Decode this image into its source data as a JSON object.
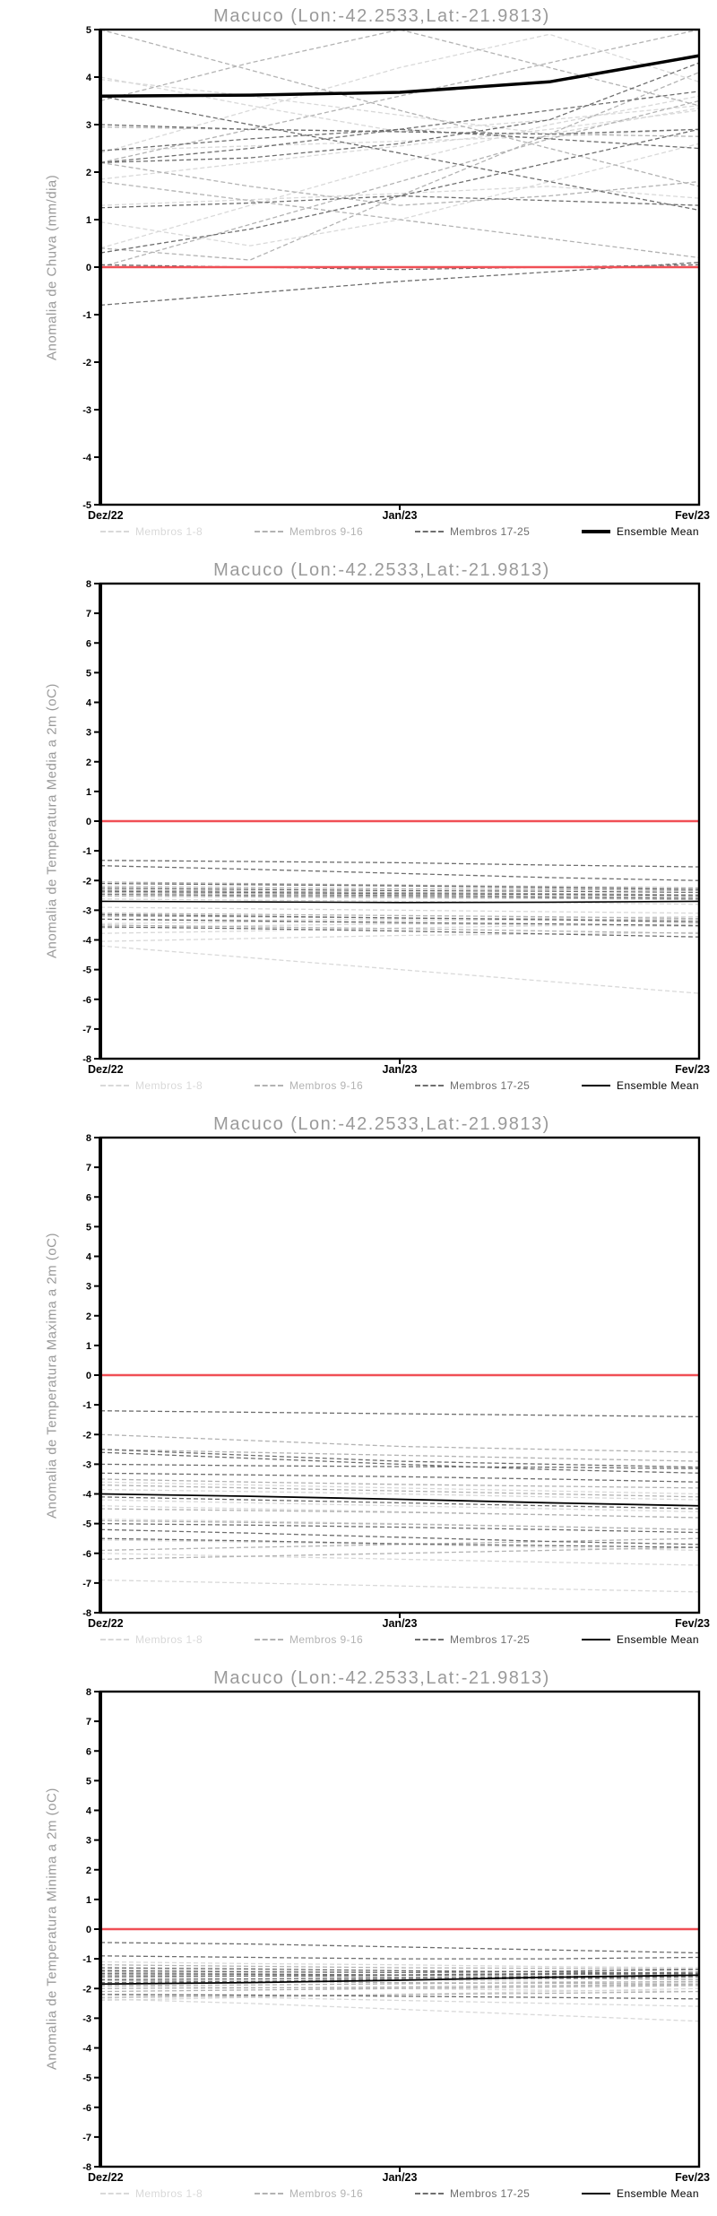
{
  "station": "Macuco",
  "coords_label": "(Lon:-42.2533,Lat:-21.9813)",
  "colors": {
    "title_gray": "#9a9a9a",
    "zero_line_red": "#f04f55",
    "member_light": "#d9d9d9",
    "member_medium": "#b3b3b3",
    "member_dark": "#6e6e6e",
    "ensemble_black": "#000000"
  },
  "chart_data": [
    {
      "type": "line",
      "title": "Macuco (Lon:-42.2533,Lat:-21.9813)",
      "ylabel": "Anomalia de Chuva (mm/dia)",
      "xlabel": "",
      "xticklabels": [
        "Dez/22",
        "Jan/23",
        "Fev/23"
      ],
      "ylim": [
        -5,
        5
      ],
      "ytick_step": 1,
      "grid": false,
      "legend_position": "bottom",
      "zero_line": {
        "y": 0,
        "color": "#f04f55"
      },
      "x": [
        0,
        0.25,
        0.5,
        0.75,
        1
      ],
      "mean": {
        "name": "Ensemble Mean",
        "color": "#000000",
        "width": 3.5,
        "values": [
          3.6,
          3.62,
          3.68,
          3.9,
          4.45
        ]
      },
      "groups": [
        {
          "name": "Membros 1-8",
          "color": "#d9d9d9",
          "series": [
            [
              4.0,
              3.4,
              2.85,
              3.1,
              3.4
            ],
            [
              1.85,
              2.2,
              2.55,
              2.9,
              3.3
            ],
            [
              0.4,
              1.3,
              2.2,
              3.0,
              3.6
            ],
            [
              2.45,
              2.55,
              2.65,
              2.75,
              2.9
            ],
            [
              0.95,
              0.45,
              1.0,
              1.8,
              2.6
            ],
            [
              2.4,
              3.3,
              4.2,
              4.9,
              3.9
            ],
            [
              1.3,
              1.42,
              1.55,
              1.7,
              1.45
            ],
            [
              3.95,
              3.6,
              3.2,
              2.8,
              3.35
            ]
          ]
        },
        {
          "name": "Membros 9-16",
          "color": "#b3b3b3",
          "series": [
            [
              2.2,
              2.9,
              3.6,
              4.3,
              5.0
            ],
            [
              5.0,
              4.15,
              3.3,
              2.5,
              1.7
            ],
            [
              0.4,
              0.15,
              1.5,
              2.8,
              4.1
            ],
            [
              2.95,
              2.9,
              2.85,
              2.8,
              2.75
            ],
            [
              1.8,
              1.4,
              1.0,
              0.6,
              0.2
            ],
            [
              3.5,
              4.3,
              5.0,
              4.2,
              3.4
            ],
            [
              0.0,
              0.9,
              1.8,
              2.7,
              3.5
            ],
            [
              2.2,
              1.7,
              1.3,
              1.5,
              1.8
            ]
          ]
        },
        {
          "name": "Membros 17-25",
          "color": "#6e6e6e",
          "series": [
            [
              3.6,
              3.0,
              2.4,
              1.8,
              1.2
            ],
            [
              2.2,
              2.5,
              2.9,
              3.3,
              3.7
            ],
            [
              -0.8,
              -0.55,
              -0.3,
              -0.1,
              0.1
            ],
            [
              0.05,
              0.0,
              -0.05,
              0.0,
              0.05
            ],
            [
              2.45,
              2.7,
              2.9,
              2.7,
              2.5
            ],
            [
              3.0,
              2.9,
              2.85,
              2.8,
              2.9
            ],
            [
              0.3,
              0.8,
              1.5,
              2.2,
              2.9
            ],
            [
              1.25,
              1.35,
              1.5,
              1.4,
              1.3
            ],
            [
              2.2,
              2.3,
              2.6,
              3.1,
              4.3
            ]
          ]
        }
      ]
    },
    {
      "type": "line",
      "title": "Macuco (Lon:-42.2533,Lat:-21.9813)",
      "ylabel": "Anomalia de Temperatura Media a 2m (oC)",
      "xlabel": "",
      "xticklabels": [
        "Dez/22",
        "Jan/23",
        "Fev/23"
      ],
      "ylim": [
        -8,
        8
      ],
      "ytick_step": 1,
      "grid": false,
      "legend_position": "bottom",
      "zero_line": {
        "y": 0,
        "color": "#f04f55"
      },
      "x": [
        0,
        0.25,
        0.5,
        0.75,
        1
      ],
      "mean": {
        "name": "Ensemble Mean",
        "color": "#000000",
        "width": 1.6,
        "values": [
          -2.7,
          -2.72,
          -2.74,
          -2.73,
          -2.7
        ]
      },
      "groups": [
        {
          "name": "Membros 1-8",
          "color": "#d9d9d9",
          "series": [
            [
              -2.9,
              -2.95,
              -3.0,
              -3.05,
              -3.1
            ],
            [
              -3.3,
              -3.33,
              -3.3,
              -3.26,
              -3.22
            ],
            [
              -3.6,
              -3.52,
              -3.46,
              -3.5,
              -3.55
            ],
            [
              -3.78,
              -3.7,
              -3.6,
              -3.52,
              -3.46
            ],
            [
              -4.2,
              -4.6,
              -5.0,
              -5.4,
              -5.8
            ],
            [
              -2.62,
              -2.66,
              -2.7,
              -2.74,
              -2.8
            ],
            [
              -3.45,
              -3.4,
              -3.36,
              -3.32,
              -3.3
            ],
            [
              -4.05,
              -3.95,
              -3.85,
              -3.8,
              -3.75
            ]
          ]
        },
        {
          "name": "Membros 9-16",
          "color": "#b3b3b3",
          "series": [
            [
              -2.05,
              -2.1,
              -2.15,
              -2.2,
              -2.25
            ],
            [
              -2.2,
              -2.24,
              -2.28,
              -2.3,
              -2.34
            ],
            [
              -2.32,
              -2.36,
              -2.4,
              -2.44,
              -2.48
            ],
            [
              -2.4,
              -2.44,
              -2.48,
              -2.5,
              -2.54
            ],
            [
              -2.52,
              -2.55,
              -2.58,
              -2.6,
              -2.64
            ],
            [
              -3.1,
              -3.14,
              -3.18,
              -3.22,
              -3.28
            ],
            [
              -3.2,
              -3.22,
              -3.26,
              -3.3,
              -3.35
            ],
            [
              -3.5,
              -3.56,
              -3.62,
              -3.7,
              -3.78
            ]
          ]
        },
        {
          "name": "Membros 17-25",
          "color": "#6e6e6e",
          "series": [
            [
              -1.32,
              -1.36,
              -1.4,
              -1.48,
              -1.54
            ],
            [
              -1.5,
              -1.62,
              -1.76,
              -1.9,
              -2.0
            ],
            [
              -2.1,
              -2.14,
              -2.18,
              -2.24,
              -2.3
            ],
            [
              -2.26,
              -2.3,
              -2.34,
              -2.36,
              -2.4
            ],
            [
              -2.36,
              -2.4,
              -2.44,
              -2.46,
              -2.5
            ],
            [
              -2.46,
              -2.5,
              -2.52,
              -2.56,
              -2.6
            ],
            [
              -3.15,
              -3.2,
              -3.26,
              -3.32,
              -3.4
            ],
            [
              -3.3,
              -3.36,
              -3.42,
              -3.46,
              -3.52
            ],
            [
              -3.56,
              -3.62,
              -3.7,
              -3.8,
              -3.9
            ]
          ]
        }
      ]
    },
    {
      "type": "line",
      "title": "Macuco (Lon:-42.2533,Lat:-21.9813)",
      "ylabel": "Anomalia de Temperatura Maxima a 2m (oC)",
      "xlabel": "",
      "xticklabels": [
        "Dez/22",
        "Jan/23",
        "Fev/23"
      ],
      "ylim": [
        -8,
        8
      ],
      "ytick_step": 1,
      "grid": false,
      "legend_position": "bottom",
      "zero_line": {
        "y": 0,
        "color": "#f04f55"
      },
      "x": [
        0,
        0.25,
        0.5,
        0.75,
        1
      ],
      "mean": {
        "name": "Ensemble Mean",
        "color": "#000000",
        "width": 1.8,
        "values": [
          -4.0,
          -4.08,
          -4.18,
          -4.3,
          -4.4
        ]
      },
      "groups": [
        {
          "name": "Membros 1-8",
          "color": "#d9d9d9",
          "series": [
            [
              -3.6,
              -3.7,
              -3.8,
              -3.9,
              -4.0
            ],
            [
              -4.4,
              -4.5,
              -4.6,
              -4.7,
              -4.8
            ],
            [
              -4.85,
              -4.92,
              -5.0,
              -5.1,
              -5.2
            ],
            [
              -5.55,
              -5.62,
              -5.7,
              -5.8,
              -5.9
            ],
            [
              -6.0,
              -6.1,
              -6.2,
              -6.3,
              -6.4
            ],
            [
              -6.9,
              -7.0,
              -7.1,
              -7.2,
              -7.3
            ],
            [
              -4.2,
              -4.3,
              -4.4,
              -4.5,
              -4.6
            ],
            [
              -3.85,
              -3.92,
              -4.0,
              -4.1,
              -4.2
            ]
          ]
        },
        {
          "name": "Membros 9-16",
          "color": "#b3b3b3",
          "series": [
            [
              -2.0,
              -2.2,
              -2.4,
              -2.5,
              -2.6
            ],
            [
              -2.5,
              -2.6,
              -2.7,
              -2.8,
              -2.9
            ],
            [
              -3.5,
              -3.6,
              -3.68,
              -3.74,
              -3.8
            ],
            [
              -3.7,
              -3.8,
              -3.9,
              -4.0,
              -4.1
            ],
            [
              -4.5,
              -4.56,
              -4.62,
              -4.7,
              -4.8
            ],
            [
              -4.9,
              -4.96,
              -5.02,
              -5.1,
              -5.2
            ],
            [
              -5.9,
              -5.8,
              -5.7,
              -5.6,
              -5.5
            ],
            [
              -6.2,
              -6.1,
              -6.0,
              -5.9,
              -5.8
            ]
          ]
        },
        {
          "name": "Membros 17-25",
          "color": "#6e6e6e",
          "series": [
            [
              -1.2,
              -1.25,
              -1.3,
              -1.35,
              -1.4
            ],
            [
              -2.5,
              -2.7,
              -2.9,
              -3.0,
              -3.1
            ],
            [
              -3.0,
              -3.05,
              -3.08,
              -3.1,
              -3.15
            ],
            [
              -3.3,
              -3.36,
              -3.42,
              -3.5,
              -3.6
            ],
            [
              -4.1,
              -4.2,
              -4.3,
              -4.4,
              -4.5
            ],
            [
              -5.0,
              -5.05,
              -5.12,
              -5.2,
              -5.3
            ],
            [
              -5.2,
              -5.32,
              -5.46,
              -5.6,
              -5.7
            ],
            [
              -5.5,
              -5.58,
              -5.68,
              -5.74,
              -5.8
            ],
            [
              -2.6,
              -2.8,
              -3.0,
              -3.18,
              -3.3
            ]
          ]
        }
      ]
    },
    {
      "type": "line",
      "title": "Macuco (Lon:-42.2533,Lat:-21.9813)",
      "ylabel": "Anomalia de Temperatura Minima a 2m (oC)",
      "xlabel": "",
      "xticklabels": [
        "Dez/22",
        "Jan/23",
        "Fev/23"
      ],
      "ylim": [
        -8,
        8
      ],
      "ytick_step": 1,
      "grid": false,
      "legend_position": "bottom",
      "zero_line": {
        "y": 0,
        "color": "#f04f55"
      },
      "x": [
        0,
        0.25,
        0.5,
        0.75,
        1
      ],
      "mean": {
        "name": "Ensemble Mean",
        "color": "#000000",
        "width": 1.8,
        "values": [
          -1.85,
          -1.8,
          -1.72,
          -1.62,
          -1.55
        ]
      },
      "groups": [
        {
          "name": "Membros 1-8",
          "color": "#d9d9d9",
          "series": [
            [
              -2.4,
              -2.3,
              -2.2,
              -2.1,
              -2.0
            ],
            [
              -2.35,
              -2.5,
              -2.7,
              -2.9,
              -3.1
            ],
            [
              -2.2,
              -2.3,
              -2.4,
              -2.5,
              -2.6
            ],
            [
              -1.92,
              -1.96,
              -2.0,
              -2.06,
              -2.1
            ],
            [
              -1.62,
              -1.66,
              -1.7,
              -1.76,
              -1.8
            ],
            [
              -1.5,
              -1.54,
              -1.6,
              -1.62,
              -1.66
            ],
            [
              -1.36,
              -1.4,
              -1.46,
              -1.5,
              -1.56
            ],
            [
              -1.1,
              -1.16,
              -1.2,
              -1.26,
              -1.3
            ]
          ]
        },
        {
          "name": "Membros 9-16",
          "color": "#b3b3b3",
          "series": [
            [
              -1.45,
              -1.5,
              -1.55,
              -1.58,
              -1.6
            ],
            [
              -1.55,
              -1.58,
              -1.62,
              -1.66,
              -1.7
            ],
            [
              -1.9,
              -1.88,
              -1.84,
              -1.8,
              -1.76
            ],
            [
              -2.0,
              -1.98,
              -1.95,
              -1.9,
              -1.86
            ],
            [
              -2.1,
              -2.05,
              -2.0,
              -1.95,
              -1.9
            ],
            [
              -2.3,
              -2.26,
              -2.2,
              -2.16,
              -2.1
            ],
            [
              -1.72,
              -1.76,
              -1.8,
              -1.82,
              -1.85
            ],
            [
              -1.2,
              -1.25,
              -1.3,
              -1.32,
              -1.35
            ]
          ]
        },
        {
          "name": "Membros 17-25",
          "color": "#6e6e6e",
          "series": [
            [
              -0.45,
              -0.5,
              -0.6,
              -0.7,
              -0.8
            ],
            [
              -0.9,
              -0.95,
              -1.0,
              -1.0,
              -0.95
            ],
            [
              -1.4,
              -1.44,
              -1.46,
              -1.42,
              -1.36
            ],
            [
              -1.5,
              -1.52,
              -1.54,
              -1.5,
              -1.45
            ],
            [
              -1.6,
              -1.58,
              -1.55,
              -1.52,
              -1.5
            ],
            [
              -1.7,
              -1.68,
              -1.65,
              -1.6,
              -1.55
            ],
            [
              -1.8,
              -1.76,
              -1.7,
              -1.66,
              -1.6
            ],
            [
              -2.2,
              -2.22,
              -2.26,
              -2.3,
              -2.35
            ],
            [
              -1.3,
              -1.34,
              -1.4,
              -1.44,
              -1.5
            ]
          ]
        }
      ]
    }
  ]
}
